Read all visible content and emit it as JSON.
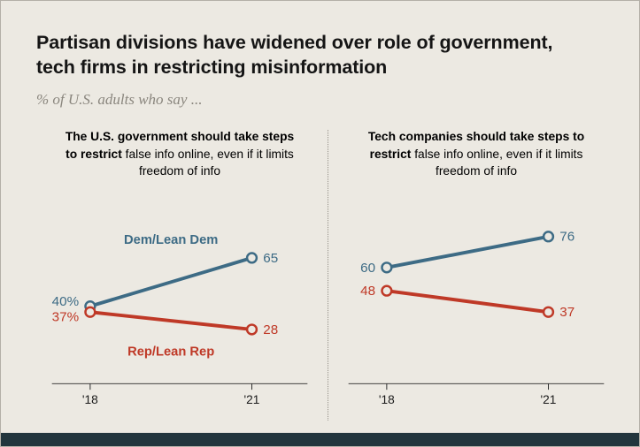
{
  "header": {
    "title": "Partisan divisions have widened over role of government, tech firms in restricting misinformation",
    "subtitle": "% of U.S. adults who say ..."
  },
  "colors": {
    "dem_blue": "#3d6b85",
    "rep_red": "#bf3927",
    "background": "#ece9e2",
    "footer_bar": "#22353d",
    "axis": "#2b2b2b",
    "subtitle_gray": "#8a867e"
  },
  "chart_data": [
    {
      "type": "line",
      "title_bold": "The U.S. government should take steps to restrict",
      "title_rest": " false info online, even if it limits freedom of info",
      "x": [
        "'18",
        "'21"
      ],
      "ylim": [
        0,
        95
      ],
      "grid": false,
      "series": [
        {
          "name": "Dem/Lean Dem",
          "color": "#3d6b85",
          "values": [
            40,
            65
          ],
          "labels": [
            "40%",
            "65"
          ],
          "name_position": "above"
        },
        {
          "name": "Rep/Lean Rep",
          "color": "#bf3927",
          "values": [
            37,
            28
          ],
          "labels": [
            "37%",
            "28"
          ],
          "name_position": "below"
        }
      ]
    },
    {
      "type": "line",
      "title_bold": "Tech companies should take steps to restrict",
      "title_rest": " false info online, even if it limits freedom of info",
      "x": [
        "'18",
        "'21"
      ],
      "ylim": [
        0,
        95
      ],
      "grid": false,
      "series": [
        {
          "name": "Dem/Lean Dem",
          "color": "#3d6b85",
          "values": [
            60,
            76
          ],
          "labels": [
            "60",
            "76"
          ]
        },
        {
          "name": "Rep/Lean Rep",
          "color": "#bf3927",
          "values": [
            48,
            37
          ],
          "labels": [
            "48",
            "37"
          ]
        }
      ]
    }
  ]
}
